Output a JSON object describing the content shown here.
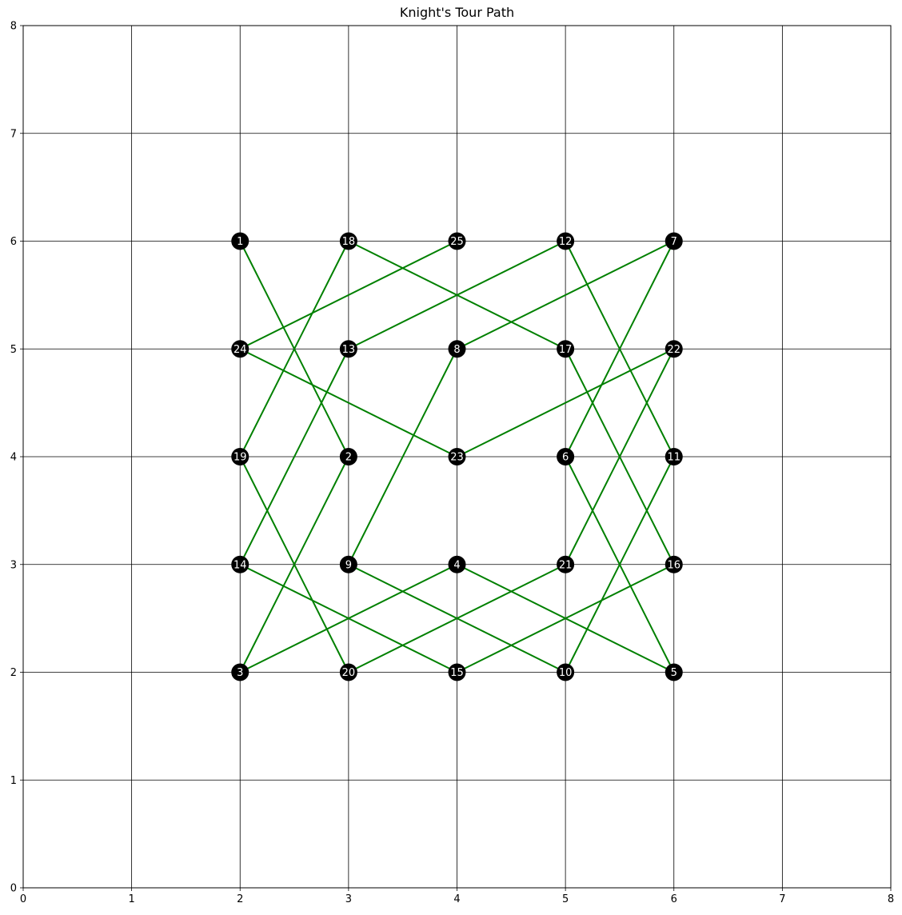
{
  "chart_data": {
    "type": "line",
    "title": "Knight's Tour Path",
    "xlabel": "",
    "ylabel": "",
    "xlim": [
      0,
      8
    ],
    "ylim": [
      0,
      8
    ],
    "xticks": [
      0,
      1,
      2,
      3,
      4,
      5,
      6,
      7,
      8
    ],
    "yticks": [
      0,
      1,
      2,
      3,
      4,
      5,
      6,
      7,
      8
    ],
    "grid": true,
    "line_color": "#008000",
    "node_color": "#000000",
    "label_color": "#ffffff",
    "path": [
      {
        "step": "1",
        "x": 2,
        "y": 6
      },
      {
        "step": "2",
        "x": 3,
        "y": 4
      },
      {
        "step": "3",
        "x": 2,
        "y": 2
      },
      {
        "step": "4",
        "x": 4,
        "y": 3
      },
      {
        "step": "5",
        "x": 6,
        "y": 2
      },
      {
        "step": "6",
        "x": 5,
        "y": 4
      },
      {
        "step": "7",
        "x": 6,
        "y": 6
      },
      {
        "step": "8",
        "x": 4,
        "y": 5
      },
      {
        "step": "9",
        "x": 3,
        "y": 3
      },
      {
        "step": "10",
        "x": 5,
        "y": 2
      },
      {
        "step": "11",
        "x": 6,
        "y": 4
      },
      {
        "step": "12",
        "x": 5,
        "y": 6
      },
      {
        "step": "13",
        "x": 3,
        "y": 5
      },
      {
        "step": "14",
        "x": 2,
        "y": 3
      },
      {
        "step": "15",
        "x": 4,
        "y": 2
      },
      {
        "step": "16",
        "x": 6,
        "y": 3
      },
      {
        "step": "17",
        "x": 5,
        "y": 5
      },
      {
        "step": "18",
        "x": 3,
        "y": 6
      },
      {
        "step": "19",
        "x": 2,
        "y": 4
      },
      {
        "step": "20",
        "x": 3,
        "y": 2
      },
      {
        "step": "21",
        "x": 5,
        "y": 3
      },
      {
        "step": "22",
        "x": 6,
        "y": 5
      },
      {
        "step": "23",
        "x": 4,
        "y": 4
      },
      {
        "step": "24",
        "x": 2,
        "y": 5
      },
      {
        "step": "25",
        "x": 4,
        "y": 6
      }
    ]
  }
}
